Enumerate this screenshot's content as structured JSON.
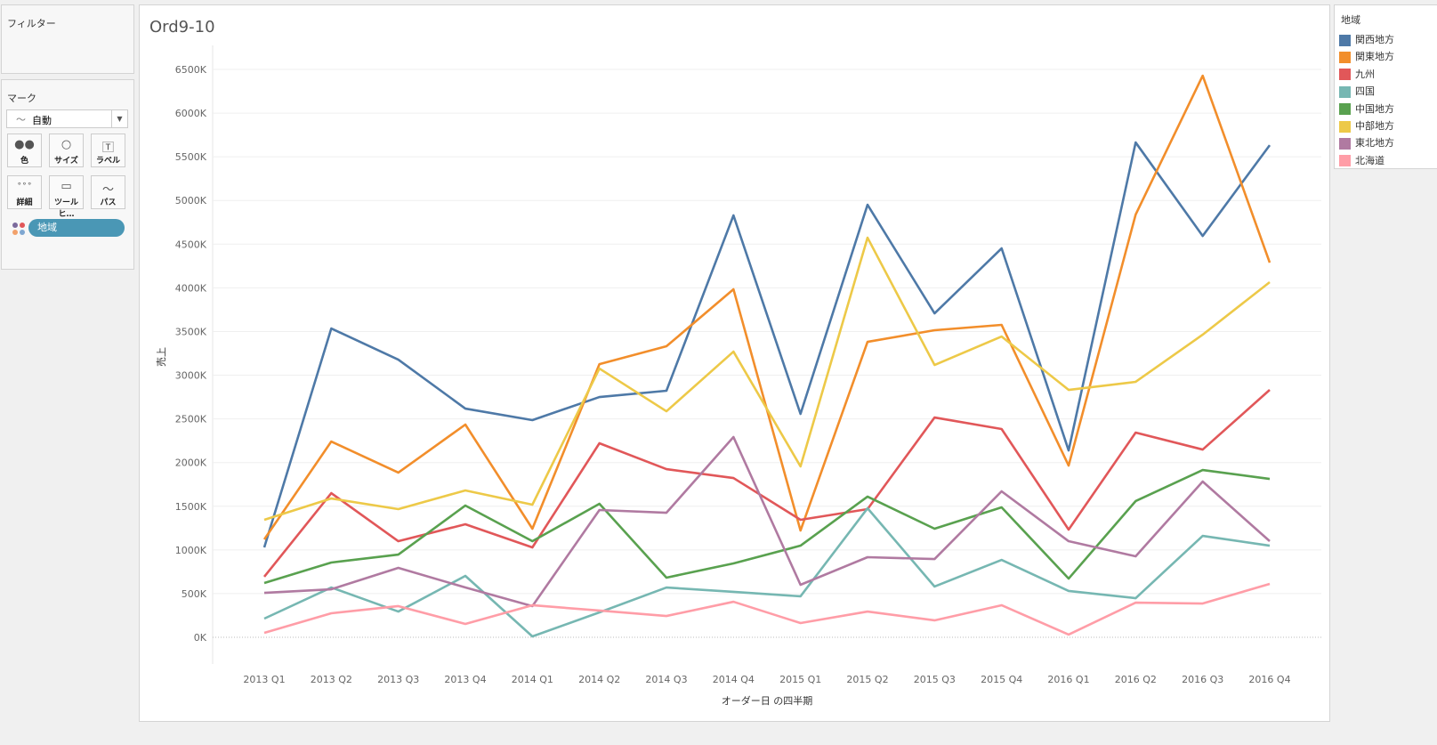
{
  "filters": {
    "title": "フィルター"
  },
  "marks": {
    "title": "マーク",
    "type": "自動",
    "cards": [
      "色",
      "サイズ",
      "ラベル",
      "詳細",
      "ツールヒ…",
      "パス"
    ],
    "pill": "地域"
  },
  "sheet_title": "Ord9-10",
  "legend": {
    "title": "地域"
  },
  "chart_data": {
    "type": "line",
    "title": "Ord9-10",
    "xlabel": "オーダー日 の四半期",
    "ylabel": "売上",
    "ylim": [
      0,
      6500000
    ],
    "grid": true,
    "legend_position": "right",
    "yticks": [
      "0K",
      "500K",
      "1000K",
      "1500K",
      "2000K",
      "2500K",
      "3000K",
      "3500K",
      "4000K",
      "4500K",
      "5000K",
      "5500K",
      "6000K",
      "6500K"
    ],
    "categories": [
      "2013 Q1",
      "2013 Q2",
      "2013 Q3",
      "2013 Q4",
      "2014 Q1",
      "2014 Q2",
      "2014 Q3",
      "2014 Q4",
      "2015 Q1",
      "2015 Q2",
      "2015 Q3",
      "2015 Q4",
      "2016 Q1",
      "2016 Q2",
      "2016 Q3",
      "2016 Q4"
    ],
    "series": [
      {
        "name": "関西地方",
        "color": "#4e79a7",
        "values": [
          1029,
          3535,
          3178,
          2618,
          2486,
          2750,
          2822,
          4829,
          2557,
          4951,
          3708,
          4452,
          2139,
          5664,
          4594,
          5633
        ]
      },
      {
        "name": "関東地方",
        "color": "#f28e2b",
        "values": [
          1121,
          2241,
          1885,
          2435,
          1243,
          3127,
          3331,
          3983,
          1222,
          3382,
          3515,
          3576,
          1966,
          4839,
          6428,
          4289
        ]
      },
      {
        "name": "九州",
        "color": "#e15759",
        "values": [
          693,
          1650,
          1100,
          1294,
          1029,
          2221,
          1925,
          1823,
          1345,
          1467,
          2516,
          2384,
          1233,
          2343,
          2149,
          2832
        ]
      },
      {
        "name": "四国",
        "color": "#76b7b2",
        "values": [
          214,
          570,
          295,
          703,
          10,
          285,
          570,
          520,
          469,
          1477,
          581,
          886,
          530,
          448,
          1161,
          1049
        ]
      },
      {
        "name": "中国地方",
        "color": "#59a14f",
        "values": [
          621,
          856,
          947,
          1508,
          1100,
          1528,
          683,
          846,
          1049,
          1610,
          1243,
          1487,
          672,
          1559,
          1915,
          1813
        ]
      },
      {
        "name": "中部地方",
        "color": "#edc948",
        "values": [
          1345,
          1589,
          1467,
          1681,
          1518,
          3076,
          2587,
          3270,
          1956,
          4574,
          3117,
          3443,
          2832,
          2924,
          3464,
          4065
        ]
      },
      {
        "name": "東北地方",
        "color": "#b07aa1",
        "values": [
          509,
          550,
          795,
          570,
          357,
          1457,
          1426,
          2292,
          601,
          917,
          896,
          1671,
          1100,
          927,
          1783,
          1100
        ]
      },
      {
        "name": "北海道",
        "color": "#ff9da7",
        "values": [
          51,
          275,
          357,
          153,
          367,
          306,
          244,
          407,
          163,
          295,
          194,
          367,
          31,
          397,
          387,
          611
        ]
      }
    ],
    "value_unit": "K"
  }
}
